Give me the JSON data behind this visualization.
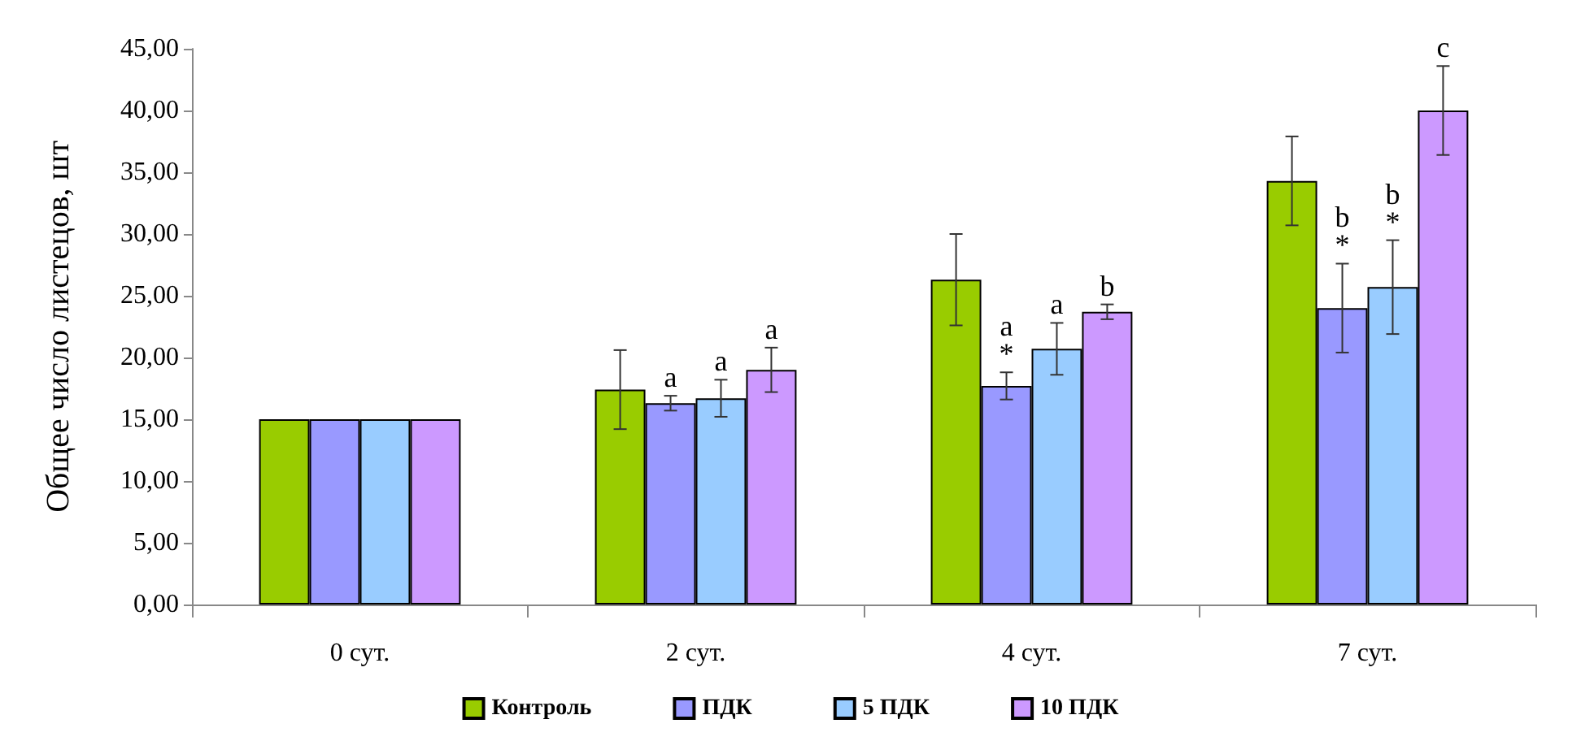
{
  "chart_data": {
    "type": "bar",
    "ylabel": "Общее число листецов, шт",
    "categories": [
      "0 сут.",
      "2 сут.",
      "4 сут.",
      "7 сут."
    ],
    "series": [
      {
        "name": "Контроль",
        "color": "#99cc00",
        "values": [
          15,
          17.4,
          26.3,
          34.3
        ],
        "errors": [
          null,
          3.2,
          3.7,
          3.6
        ],
        "value_labels": [
          null,
          null,
          null,
          null
        ]
      },
      {
        "name": "ПДК",
        "color": "#9999ff",
        "values": [
          15,
          16.3,
          17.7,
          24.0
        ],
        "errors": [
          null,
          0.6,
          1.1,
          3.6
        ],
        "value_labels": [
          null,
          "a",
          "a\n*",
          "b\n*"
        ]
      },
      {
        "name": "5 ПДК",
        "color": "#99ccff",
        "values": [
          15,
          16.7,
          20.7,
          25.7
        ],
        "errors": [
          null,
          1.5,
          2.1,
          3.8
        ],
        "value_labels": [
          null,
          "a",
          "a",
          "b\n*"
        ]
      },
      {
        "name": "10 ПДК",
        "color": "#cc99ff",
        "values": [
          15,
          19.0,
          23.7,
          40.0
        ],
        "errors": [
          null,
          1.8,
          0.6,
          3.6
        ],
        "value_labels": [
          null,
          "a",
          "b",
          "c"
        ]
      }
    ],
    "ylim": [
      0,
      45
    ],
    "yticks": [
      {
        "value": 0,
        "label": "0,00"
      },
      {
        "value": 5,
        "label": "5,00"
      },
      {
        "value": 10,
        "label": "10,00"
      },
      {
        "value": 15,
        "label": "15,00"
      },
      {
        "value": 20,
        "label": "20,00"
      },
      {
        "value": 25,
        "label": "25,00"
      },
      {
        "value": 30,
        "label": "30,00"
      },
      {
        "value": 35,
        "label": "35,00"
      },
      {
        "value": 40,
        "label": "40,00"
      },
      {
        "value": 45,
        "label": "45,00"
      }
    ],
    "grid": false,
    "legend": "bottom"
  }
}
